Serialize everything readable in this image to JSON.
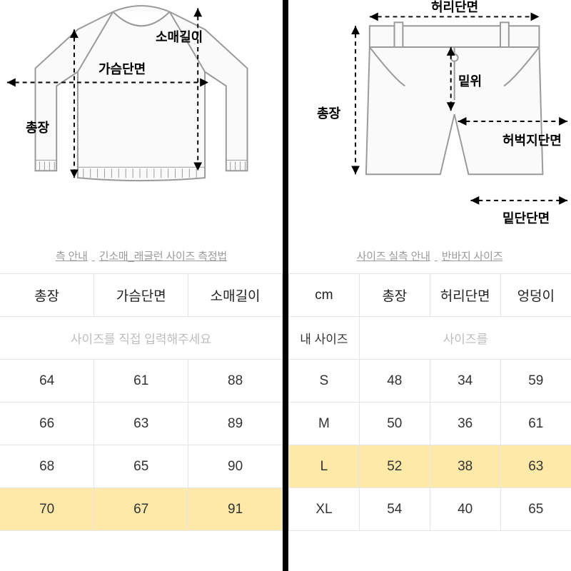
{
  "left": {
    "diagram": {
      "type": "top_raglan",
      "stroke": "#9a9a9a",
      "arrow": "#000000",
      "labels": {
        "chest": "가슴단면",
        "length": "총장",
        "sleeve": "소매길이"
      }
    },
    "guide": {
      "a": "측 안내",
      "b": "긴소매_래글런 사이즈 측정법"
    },
    "table": {
      "headers": [
        "총장",
        "가슴단면",
        "소매길이"
      ],
      "placeholder": "사이즈를 직접 입력해주세요",
      "rows": [
        {
          "cells": [
            "64",
            "61",
            "88"
          ],
          "hl": false
        },
        {
          "cells": [
            "66",
            "63",
            "89"
          ],
          "hl": false
        },
        {
          "cells": [
            "68",
            "65",
            "90"
          ],
          "hl": false
        },
        {
          "cells": [
            "70",
            "67",
            "91"
          ],
          "hl": true
        }
      ]
    }
  },
  "right": {
    "diagram": {
      "type": "shorts",
      "stroke": "#9a9a9a",
      "arrow": "#000000",
      "labels": {
        "waist": "허리단면",
        "rise": "밑위",
        "length": "총장",
        "thigh": "허벅지단면",
        "hem": "밑단단면"
      }
    },
    "guide": {
      "a": "사이즈 실측 안내",
      "b": "반바지 사이즈"
    },
    "table": {
      "headers": [
        "cm",
        "총장",
        "허리단면",
        "엉덩이"
      ],
      "my_size_label": "내 사이즈",
      "my_size_placeholder": "사이즈를",
      "rows": [
        {
          "cells": [
            "S",
            "48",
            "34",
            "59"
          ],
          "hl": false
        },
        {
          "cells": [
            "M",
            "50",
            "36",
            "61"
          ],
          "hl": false
        },
        {
          "cells": [
            "L",
            "52",
            "38",
            "63"
          ],
          "hl": true
        },
        {
          "cells": [
            "XL",
            "54",
            "40",
            "65"
          ],
          "hl": false
        }
      ]
    }
  }
}
